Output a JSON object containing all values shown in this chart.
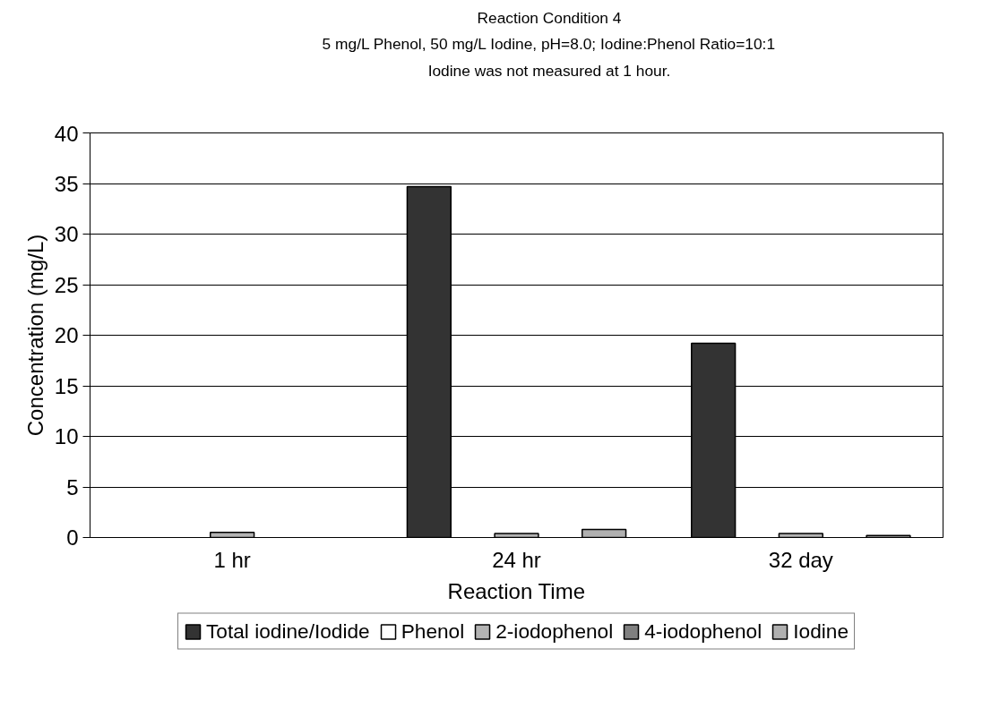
{
  "chart_data": {
    "type": "bar",
    "title": "Reaction Condition 4",
    "subtitle": "5 mg/L Phenol, 50 mg/L Iodine, pH=8.0; Iodine:Phenol Ratio=10:1\nIodine was not measured at 1 hour.",
    "xlabel": "Reaction Time",
    "ylabel": "Concentration (mg/L)",
    "categories": [
      "1 hr",
      "24 hr",
      "32 day"
    ],
    "series": [
      {
        "name": "Total iodine/Iodide",
        "color": "#333333",
        "values": [
          null,
          34.7,
          19.2
        ]
      },
      {
        "name": "Phenol",
        "color": "#ffffff",
        "values": [
          null,
          null,
          null
        ]
      },
      {
        "name": "2-iodophenol",
        "color": "#b3b3b3",
        "values": [
          0.5,
          0.4,
          0.4
        ]
      },
      {
        "name": "4-iodophenol",
        "color": "#808080",
        "values": [
          null,
          null,
          null
        ]
      },
      {
        "name": "Iodine",
        "color": "#b0b0b0",
        "values": [
          null,
          0.8,
          0.2
        ]
      }
    ],
    "ylim": [
      0,
      40
    ],
    "yticks": [
      0,
      5,
      10,
      15,
      20,
      25,
      30,
      35,
      40
    ],
    "grid": "y",
    "legend": "bottom"
  }
}
